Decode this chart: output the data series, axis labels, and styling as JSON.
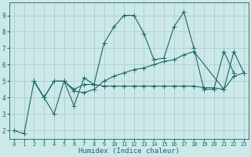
{
  "xlabel": "Humidex (Indice chaleur)",
  "xlim": [
    -0.5,
    23.5
  ],
  "ylim": [
    1.5,
    9.8
  ],
  "xticks": [
    0,
    1,
    2,
    3,
    4,
    5,
    6,
    7,
    8,
    9,
    10,
    11,
    12,
    13,
    14,
    15,
    16,
    17,
    18,
    19,
    20,
    21,
    22,
    23
  ],
  "yticks": [
    2,
    3,
    4,
    5,
    6,
    7,
    8,
    9
  ],
  "bg_color": "#cce8e8",
  "grid_color": "#aac8c8",
  "line_color": "#1a6868",
  "line1_x": [
    0,
    1,
    2,
    3,
    4,
    5,
    6,
    7,
    8,
    9,
    10,
    11,
    12,
    13,
    14,
    15,
    16,
    17,
    18,
    19,
    20,
    21,
    22
  ],
  "line1_y": [
    2.0,
    1.8,
    5.0,
    4.0,
    3.0,
    5.0,
    3.5,
    5.2,
    4.8,
    7.3,
    8.3,
    9.0,
    9.0,
    7.9,
    6.3,
    6.4,
    8.3,
    9.2,
    7.0,
    4.5,
    4.5,
    6.8,
    5.5
  ],
  "line2_x": [
    2,
    3,
    4,
    5,
    6,
    7,
    8,
    9,
    10,
    11,
    12,
    13,
    14,
    15,
    16,
    17,
    18,
    21,
    22,
    23
  ],
  "line2_y": [
    5.0,
    4.0,
    5.0,
    5.0,
    4.4,
    4.3,
    4.5,
    5.0,
    5.3,
    5.5,
    5.7,
    5.8,
    6.0,
    6.2,
    6.3,
    6.6,
    6.8,
    4.5,
    6.8,
    5.5
  ],
  "line3_x": [
    2,
    3,
    4,
    5,
    6,
    7,
    8,
    9,
    10,
    11,
    12,
    13,
    14,
    15,
    16,
    17,
    18,
    19,
    20,
    21,
    22,
    23
  ],
  "line3_y": [
    5.0,
    4.0,
    5.0,
    5.0,
    4.5,
    4.8,
    4.8,
    4.7,
    4.7,
    4.7,
    4.7,
    4.7,
    4.7,
    4.7,
    4.7,
    4.7,
    4.7,
    4.6,
    4.6,
    4.5,
    5.3,
    5.5
  ],
  "marker": "+",
  "markersize": 3,
  "line_width": 0.8
}
